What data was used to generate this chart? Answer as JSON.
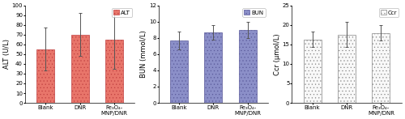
{
  "subplots": [
    {
      "ylabel": "ALT (U/L)",
      "ylim": [
        0,
        100
      ],
      "yticks": [
        0,
        10,
        20,
        30,
        40,
        50,
        60,
        70,
        80,
        90,
        100
      ],
      "categories": [
        "Blank",
        "DNR",
        "Fe₃O₄-\nMNP/DNR"
      ],
      "values": [
        55,
        70,
        65
      ],
      "errors": [
        22,
        22,
        30
      ],
      "bar_color": "#e8756a",
      "hatch": "....",
      "hatch_color": "#c04040",
      "edge_color": "#c04040",
      "legend_label": "ALT"
    },
    {
      "ylabel": "BUN (mmol/L)",
      "ylim": [
        0,
        12
      ],
      "yticks": [
        0,
        2,
        4,
        6,
        8,
        10,
        12
      ],
      "categories": [
        "Blank",
        "DNR",
        "Fe₃O₄-\nMNP/DNR"
      ],
      "values": [
        7.7,
        8.7,
        9.0
      ],
      "errors": [
        1.1,
        0.9,
        1.0
      ],
      "bar_color": "#8b8fc8",
      "hatch": "....",
      "hatch_color": "#5a5a9a",
      "edge_color": "#5a5a9a",
      "legend_label": "BUN"
    },
    {
      "ylabel": "Ccr (μmol/L)",
      "ylim": [
        0,
        25
      ],
      "yticks": [
        0,
        5,
        10,
        15,
        20,
        25
      ],
      "categories": [
        "Blank",
        "DNR",
        "Fe₃O₄-\nMNP/DNR"
      ],
      "values": [
        16.3,
        17.5,
        17.9
      ],
      "errors": [
        2.0,
        3.2,
        2.0
      ],
      "bar_color": "#f8f8f8",
      "hatch": "....",
      "hatch_color": "#888888",
      "edge_color": "#888888",
      "legend_label": "Ccr"
    }
  ],
  "background_color": "#ffffff",
  "tick_fontsize": 5.0,
  "label_fontsize": 6.0,
  "legend_fontsize": 5.0,
  "bar_width": 0.52
}
